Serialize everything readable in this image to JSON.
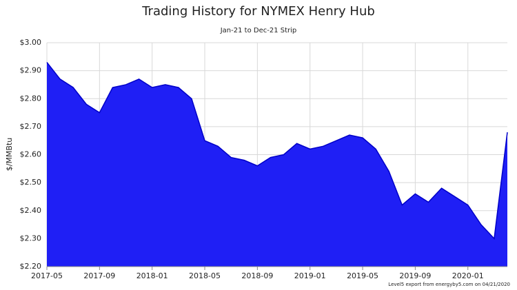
{
  "chart_data": {
    "type": "area",
    "title": "Trading History for NYMEX Henry Hub",
    "subtitle": "Jan-21 to Dec-21 Strip",
    "y_label": "$/MMBtu",
    "footnote": "Level5 export from energyby5.com on 04/21/2020",
    "x": [
      "2017-05",
      "2017-06",
      "2017-07",
      "2017-08",
      "2017-09",
      "2017-10",
      "2017-11",
      "2017-12",
      "2018-01",
      "2018-02",
      "2018-03",
      "2018-04",
      "2018-05",
      "2018-06",
      "2018-07",
      "2018-08",
      "2018-09",
      "2018-10",
      "2018-11",
      "2018-12",
      "2019-01",
      "2019-02",
      "2019-03",
      "2019-04",
      "2019-05",
      "2019-06",
      "2019-07",
      "2019-08",
      "2019-09",
      "2019-10",
      "2019-11",
      "2019-12",
      "2020-01",
      "2020-02",
      "2020-03",
      "2020-04"
    ],
    "series": [
      {
        "name": "Jan-21 to Dec-21 Strip",
        "color": "#1f1ff5",
        "line_color": "#0000c8",
        "values": [
          2.93,
          2.87,
          2.84,
          2.78,
          2.75,
          2.84,
          2.85,
          2.87,
          2.84,
          2.85,
          2.84,
          2.8,
          2.65,
          2.63,
          2.59,
          2.58,
          2.56,
          2.59,
          2.6,
          2.64,
          2.62,
          2.63,
          2.65,
          2.67,
          2.66,
          2.62,
          2.54,
          2.42,
          2.46,
          2.43,
          2.48,
          2.45,
          2.42,
          2.35,
          2.3,
          2.68
        ]
      }
    ],
    "xlim": [
      "2017-05",
      "2020-04"
    ],
    "xticks": [
      "2017-05",
      "2017-09",
      "2018-01",
      "2018-05",
      "2018-09",
      "2019-01",
      "2019-05",
      "2019-09",
      "2020-01"
    ],
    "ylim": [
      2.2,
      3.0
    ],
    "yticks": [
      {
        "value": 2.2,
        "label": "$2.20"
      },
      {
        "value": 2.3,
        "label": "$2.30"
      },
      {
        "value": 2.4,
        "label": "$2.40"
      },
      {
        "value": 2.5,
        "label": "$2.50"
      },
      {
        "value": 2.6,
        "label": "$2.60"
      },
      {
        "value": 2.7,
        "label": "$2.70"
      },
      {
        "value": 2.8,
        "label": "$2.80"
      },
      {
        "value": 2.9,
        "label": "$2.90"
      },
      {
        "value": 3.0,
        "label": "$3.00"
      }
    ],
    "grid": true
  }
}
